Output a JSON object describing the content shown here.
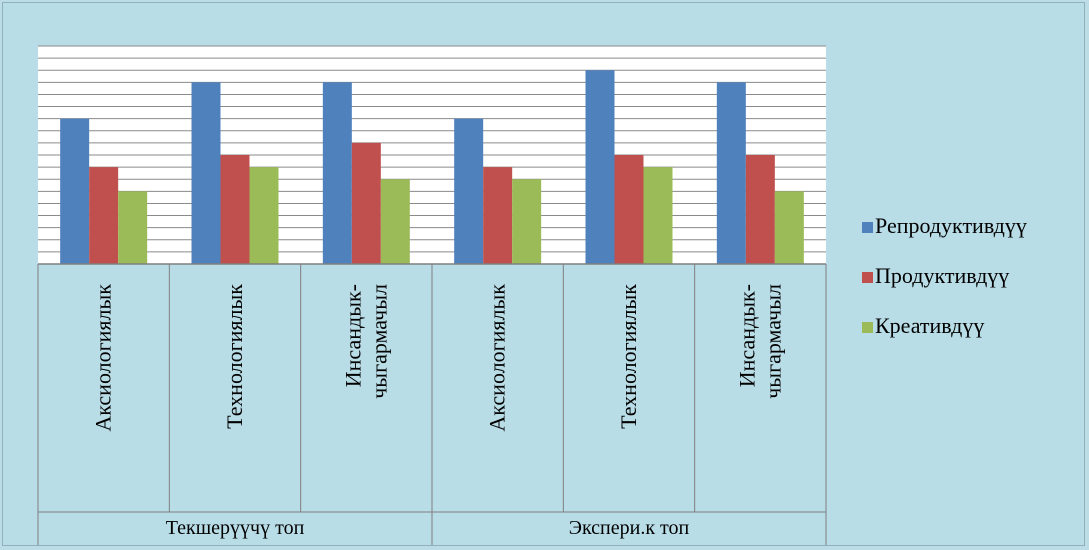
{
  "chart_data": {
    "type": "bar",
    "groups": [
      {
        "label": "Текшерүүчү топ",
        "categories": [
          "Аксиологиялык",
          "Технологиялык",
          "Инсандык-\nчыгармачыл"
        ]
      },
      {
        "label": "Экспери.к топ",
        "categories": [
          "Аксиологиялык",
          "Технологиялык",
          "Инсандык-\nчыгармачыл"
        ]
      }
    ],
    "categories": [
      "Аксиологиялык",
      "Технологиялык",
      "Инсандык-\nчыгармачыл",
      "Аксиологиялык",
      "Технологиялык",
      "Инсандык-\nчыгармачыл"
    ],
    "series": [
      {
        "name": "Репродуктивдүү",
        "color": "#4f81bd",
        "values": [
          12,
          15,
          15,
          12,
          16,
          15
        ]
      },
      {
        "name": "Продуктивдүү",
        "color": "#c0504d",
        "values": [
          8,
          9,
          10,
          8,
          9,
          9
        ]
      },
      {
        "name": "Креативдүү",
        "color": "#9bbb59",
        "values": [
          6,
          8,
          7,
          7,
          8,
          6
        ]
      }
    ],
    "ylim": [
      0,
      18
    ],
    "y_gridline_step": 1,
    "grid": true,
    "legend_position": "right",
    "title": "",
    "xlabel": "",
    "ylabel": ""
  }
}
